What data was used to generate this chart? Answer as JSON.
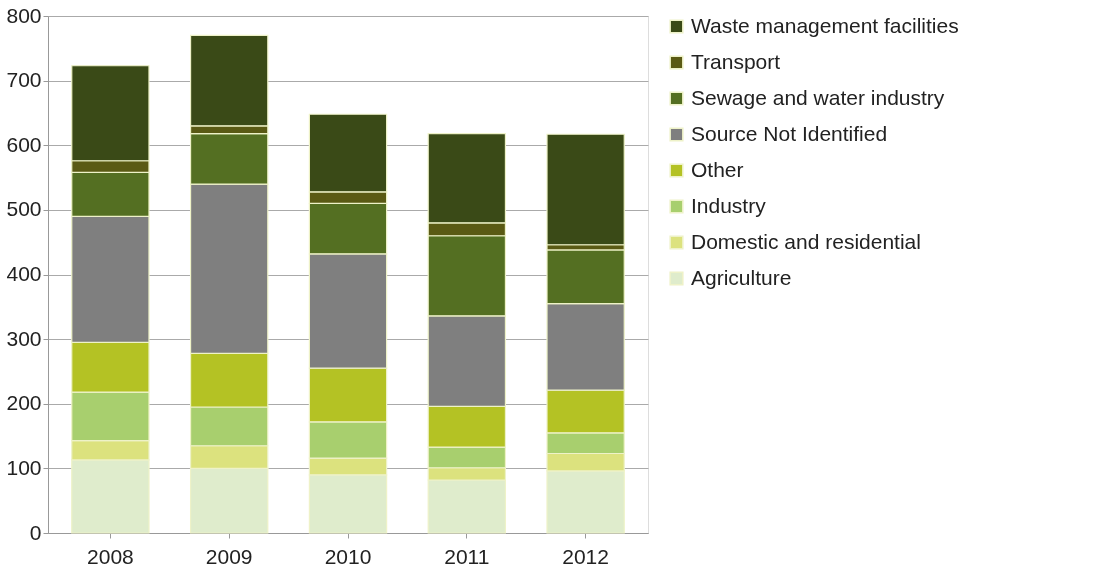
{
  "chart_data": {
    "type": "bar",
    "stacked": true,
    "categories": [
      "2008",
      "2009",
      "2010",
      "2011",
      "2012"
    ],
    "series": [
      {
        "name": "Agriculture",
        "color": "#dfeccc",
        "values": [
          113,
          100,
          90,
          82,
          96
        ]
      },
      {
        "name": "Domestic and residential",
        "color": "#dce27e",
        "values": [
          30,
          35,
          26,
          19,
          27
        ]
      },
      {
        "name": "Industry",
        "color": "#a8cf6e",
        "values": [
          75,
          60,
          56,
          32,
          32
        ]
      },
      {
        "name": "Other",
        "color": "#b4c224",
        "values": [
          77,
          83,
          83,
          63,
          66
        ]
      },
      {
        "name": "Source Not Identified",
        "color": "#7f7f7f",
        "values": [
          195,
          262,
          177,
          140,
          134
        ]
      },
      {
        "name": "Sewage and water industry",
        "color": "#546f22",
        "values": [
          68,
          78,
          78,
          124,
          83
        ]
      },
      {
        "name": "Transport",
        "color": "#5a5a14",
        "values": [
          18,
          12,
          18,
          20,
          8
        ]
      },
      {
        "name": "Waste management facilities",
        "color": "#3a4a17",
        "values": [
          147,
          140,
          120,
          138,
          171
        ]
      }
    ],
    "ylim": [
      0,
      800
    ],
    "yticks": [
      0,
      100,
      200,
      300,
      400,
      500,
      600,
      700,
      800
    ],
    "grid": "y",
    "legend": "right"
  }
}
